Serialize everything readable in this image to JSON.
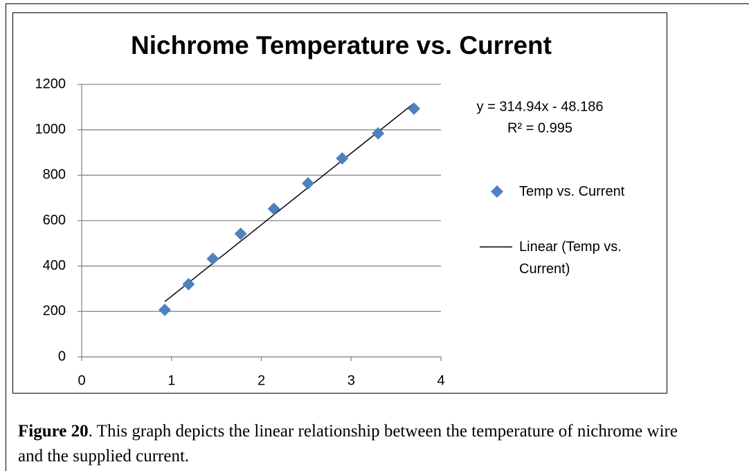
{
  "chart_data": {
    "type": "scatter",
    "title": "Nichrome Temperature vs. Current",
    "x": [
      0.925,
      1.19,
      1.46,
      1.77,
      2.14,
      2.52,
      2.9,
      3.3,
      3.7
    ],
    "series": [
      {
        "name": "Temp vs. Current",
        "color": "#4f81bd",
        "values": [
          207,
          320,
          432,
          542,
          652,
          764,
          874,
          984,
          1093
        ]
      }
    ],
    "trendline": {
      "name": "Linear (Temp vs. Current)",
      "color": "#000000",
      "slope": 314.94,
      "intercept": -48.186,
      "equation_label": "y = 314.94x - 48.186",
      "r2_label": "R² = 0.995"
    },
    "xlim": [
      0,
      4
    ],
    "xticks": [
      0,
      1,
      2,
      3,
      4
    ],
    "ylim": [
      0,
      1200
    ],
    "yticks": [
      0,
      200,
      400,
      600,
      800,
      1000,
      1200
    ],
    "grid": true,
    "legend": "right"
  },
  "caption": {
    "label": "Figure 20",
    "text": ". This graph depicts the linear relationship between the temperature of nichrome wire and the supplied current."
  }
}
